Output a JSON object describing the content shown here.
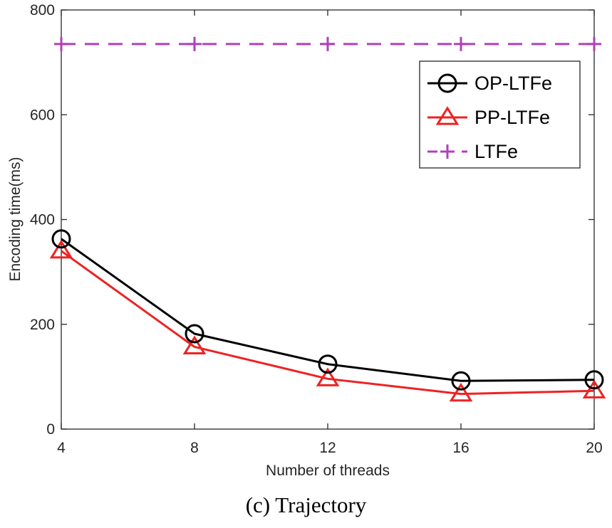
{
  "chart_data": {
    "type": "line",
    "xlabel": "Number of threads",
    "ylabel": "Encoding time(ms)",
    "caption": "(c) Trajectory",
    "x": [
      4,
      8,
      12,
      16,
      20
    ],
    "xticks": [
      "4",
      "8",
      "12",
      "16",
      "20"
    ],
    "yticks": [
      "0",
      "200",
      "400",
      "600",
      "800"
    ],
    "xlim": [
      4,
      20
    ],
    "ylim": [
      0,
      800
    ],
    "grid": false,
    "legend_position": "top-right",
    "series": [
      {
        "name": "OP-LTFe",
        "values": [
          363,
          182,
          124,
          92,
          94
        ],
        "color": "#000000",
        "marker": "circle",
        "style": "solid"
      },
      {
        "name": "PP-LTFe",
        "values": [
          340,
          157,
          96,
          67,
          73
        ],
        "color": "#ee2222",
        "marker": "triangle",
        "style": "solid"
      },
      {
        "name": "LTFe",
        "values": [
          735,
          735,
          735,
          735,
          735
        ],
        "color": "#b040b8",
        "marker": "plus",
        "style": "dashed"
      }
    ]
  }
}
